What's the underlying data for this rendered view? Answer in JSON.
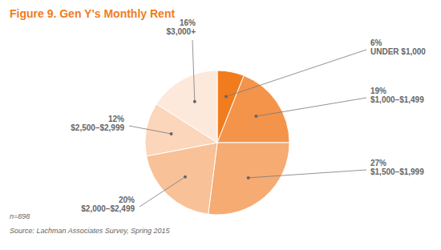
{
  "chart_data": {
    "type": "pie",
    "title": "Figure 9. Gen Y's Monthly Rent",
    "categories": [
      "UNDER $1,000",
      "$1,000–$1,499",
      "$1,500–$1,999",
      "$2,000–$2,499",
      "$2,500–$2,999",
      "$3,000+"
    ],
    "values": [
      6,
      19,
      27,
      20,
      12,
      16
    ],
    "value_labels": [
      "6%",
      "19%",
      "27%",
      "20%",
      "12%",
      "16%"
    ],
    "colors": [
      "#f07c1e",
      "#f4944a",
      "#f6ab72",
      "#f8c197",
      "#fbd6bb",
      "#fde9db"
    ],
    "data_labels": true,
    "annotations": [
      "n=898",
      "Source: Lachman Associates Survey, Spring 2015"
    ]
  }
}
